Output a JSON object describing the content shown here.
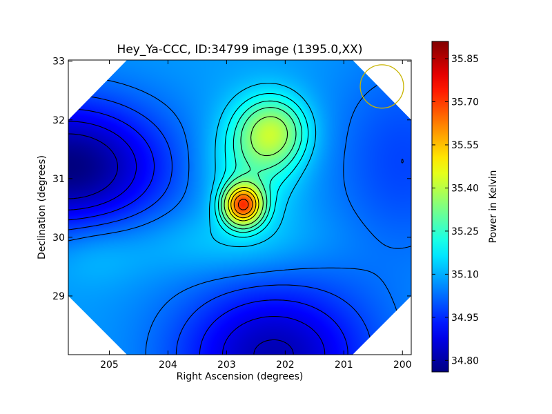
{
  "chart_data": {
    "type": "heatmap",
    "title": "Hey_Ya-CCC, ID:34799 image (1395.0,XX)",
    "xlabel": "Right Ascension (degrees)",
    "ylabel": "Declination (degrees)",
    "colorbar_label": "Power in Kelvin",
    "xlim": [
      205.7,
      199.85
    ],
    "ylim": [
      28.0,
      33.02
    ],
    "x_ticks": [
      205,
      204,
      203,
      202,
      201,
      200
    ],
    "x_tick_labels": [
      "205",
      "204",
      "203",
      "202",
      "201",
      "200"
    ],
    "y_ticks": [
      29,
      30,
      31,
      32,
      33
    ],
    "y_tick_labels": [
      "29",
      "30",
      "31",
      "32",
      "33"
    ],
    "colorbar_range": [
      34.76,
      35.91
    ],
    "colorbar_ticks": [
      34.8,
      34.95,
      35.1,
      35.25,
      35.4,
      35.55,
      35.7,
      35.85
    ],
    "colorbar_tick_labels": [
      "34.80",
      "34.95",
      "35.10",
      "35.25",
      "35.40",
      "35.55",
      "35.70",
      "35.85"
    ],
    "colormap": "jet",
    "contour_color": "#000000",
    "beam_circle_color": "#c8b400",
    "peak": {
      "ra": 202.75,
      "dec": 30.55,
      "value": 35.91
    },
    "components": [
      {
        "ra": 202.72,
        "dec": 30.55,
        "amplitude": 0.55,
        "sigma_ra": 0.23,
        "sigma_dec": 0.24
      },
      {
        "ra": 202.2,
        "dec": 31.8,
        "amplitude": 0.27,
        "sigma_ra": 0.42,
        "sigma_dec": 0.42
      },
      {
        "ra": 202.6,
        "dec": 31.2,
        "amplitude": 0.14,
        "sigma_ra": 0.55,
        "sigma_dec": 0.7
      },
      {
        "ra": 205.7,
        "dec": 31.2,
        "amplitude": -0.32,
        "sigma_ra": 1.2,
        "sigma_dec": 0.8
      },
      {
        "ra": 202.2,
        "dec": 28.0,
        "amplitude": -0.26,
        "sigma_ra": 1.2,
        "sigma_dec": 0.9
      },
      {
        "ra": 200.0,
        "dec": 31.3,
        "amplitude": -0.1,
        "sigma_ra": 0.9,
        "sigma_dec": 1.2
      },
      {
        "ra": 203.2,
        "dec": 29.9,
        "amplitude": 0.06,
        "sigma_ra": 1.3,
        "sigma_dec": 0.4
      },
      {
        "ra": 205.3,
        "dec": 29.7,
        "amplitude": 0.05,
        "sigma_ra": 0.6,
        "sigma_dec": 0.4
      }
    ],
    "background_level": 35.08,
    "contour_levels": [
      34.83,
      34.88,
      34.93,
      34.98,
      35.03,
      35.13,
      35.18,
      35.23,
      35.28,
      35.35,
      35.45,
      35.52,
      35.6,
      35.68,
      35.76,
      35.84,
      35.9
    ],
    "beam": {
      "ra": 200.35,
      "dec": 32.57,
      "radius_deg": 0.37
    },
    "visible_footprint_corners": [
      [
        205.7,
        32.0
      ],
      [
        204.7,
        33.02
      ],
      [
        200.85,
        33.02
      ],
      [
        199.85,
        32.0
      ],
      [
        199.85,
        29.0
      ],
      [
        200.85,
        28.0
      ],
      [
        204.7,
        28.0
      ],
      [
        205.7,
        29.0
      ]
    ],
    "grid": false,
    "legend": "none"
  }
}
